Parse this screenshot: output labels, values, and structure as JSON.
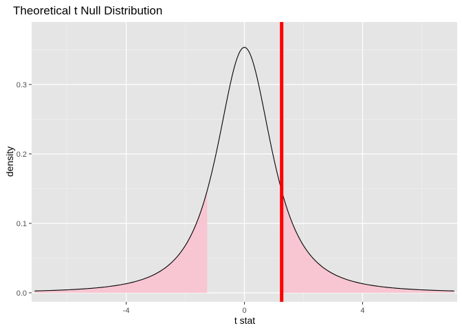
{
  "chart_data": {
    "type": "area",
    "title": "Theoretical t Null Distribution",
    "xlabel": "t stat",
    "ylabel": "density",
    "xlim": [
      -7.2,
      7.2
    ],
    "ylim": [
      -0.013,
      0.39
    ],
    "x_ticks": [
      -4,
      0,
      4
    ],
    "x_tick_labels": [
      "-4",
      "0",
      "4"
    ],
    "y_ticks": [
      0.0,
      0.1,
      0.2,
      0.3
    ],
    "y_tick_labels": [
      "0.0",
      "0.1",
      "0.2",
      "0.3"
    ],
    "grid": true,
    "curve_range": [
      -7.1,
      7.1
    ],
    "curve_df": 2,
    "observed_stat": 1.26,
    "shaded_tails": {
      "left_upper": -1.26,
      "right_lower": 1.26
    },
    "colors": {
      "panel_background": "#e5e5e5",
      "grid_major": "#ffffff",
      "grid_minor": "#f2f2f2",
      "curve": "#000000",
      "shade": "#f7c6d2",
      "observed_line": "#ff0000"
    },
    "legend": "none"
  }
}
